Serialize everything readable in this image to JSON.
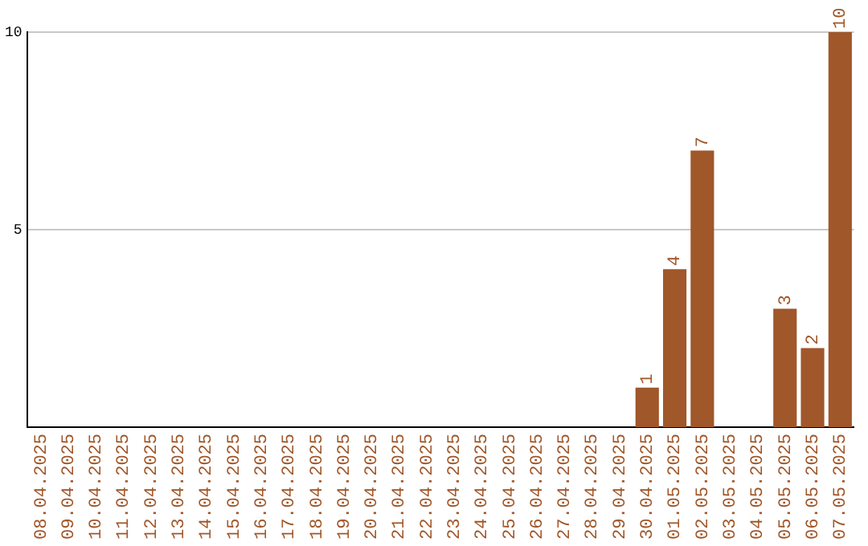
{
  "chart_data": {
    "type": "bar",
    "categories": [
      "08.04.2025",
      "09.04.2025",
      "10.04.2025",
      "11.04.2025",
      "12.04.2025",
      "13.04.2025",
      "14.04.2025",
      "15.04.2025",
      "16.04.2025",
      "17.04.2025",
      "18.04.2025",
      "19.04.2025",
      "20.04.2025",
      "21.04.2025",
      "22.04.2025",
      "23.04.2025",
      "24.04.2025",
      "25.04.2025",
      "26.04.2025",
      "27.04.2025",
      "28.04.2025",
      "29.04.2025",
      "30.04.2025",
      "01.05.2025",
      "02.05.2025",
      "03.05.2025",
      "04.05.2025",
      "05.05.2025",
      "06.05.2025",
      "07.05.2025"
    ],
    "values": [
      0,
      0,
      0,
      0,
      0,
      0,
      0,
      0,
      0,
      0,
      0,
      0,
      0,
      0,
      0,
      0,
      0,
      0,
      0,
      0,
      0,
      0,
      1,
      4,
      7,
      0,
      0,
      3,
      2,
      10
    ],
    "value_labels": [
      null,
      null,
      null,
      null,
      null,
      null,
      null,
      null,
      null,
      null,
      null,
      null,
      null,
      null,
      null,
      null,
      null,
      null,
      null,
      null,
      null,
      null,
      "1",
      "4",
      "7",
      null,
      null,
      "3",
      "2",
      "10"
    ],
    "color": "#a0572a",
    "ylim": [
      0,
      10
    ],
    "yticks": [
      5,
      10
    ],
    "grid": "y"
  }
}
